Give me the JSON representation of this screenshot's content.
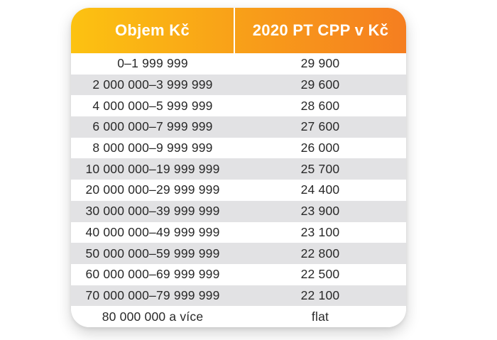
{
  "chart_data": {
    "type": "table",
    "columns": [
      "Objem Kč",
      "2020 PT CPP v Kč"
    ],
    "rows": [
      {
        "objem": "0–1 999 999",
        "cpp": "29 900"
      },
      {
        "objem": "2 000 000–3 999 999",
        "cpp": "29 600"
      },
      {
        "objem": "4 000 000–5 999 999",
        "cpp": "28 600"
      },
      {
        "objem": "6 000 000–7 999 999",
        "cpp": "27 600"
      },
      {
        "objem": "8 000 000–9 999 999",
        "cpp": "26 000"
      },
      {
        "objem": "10 000 000–19 999 999",
        "cpp": "25 700"
      },
      {
        "objem": "20 000 000–29 999 999",
        "cpp": "24 400"
      },
      {
        "objem": "30 000 000–39 999 999",
        "cpp": "23 900"
      },
      {
        "objem": "40 000 000–49 999 999",
        "cpp": "23 100"
      },
      {
        "objem": "50 000 000–59 999 999",
        "cpp": "22 800"
      },
      {
        "objem": "60 000 000–69 999 999",
        "cpp": "22 500"
      },
      {
        "objem": "70 000 000–79 999 999",
        "cpp": "22 100"
      },
      {
        "objem": "80 000 000 a více",
        "cpp": "flat"
      }
    ]
  },
  "colors": {
    "header_grad_start": "#FCC211",
    "header_grad_end": "#F57E20",
    "row_alt": "#E2E2E4",
    "row_bg": "#FFFFFF",
    "row_text": "#282828",
    "header_text": "#FFFFFF"
  }
}
